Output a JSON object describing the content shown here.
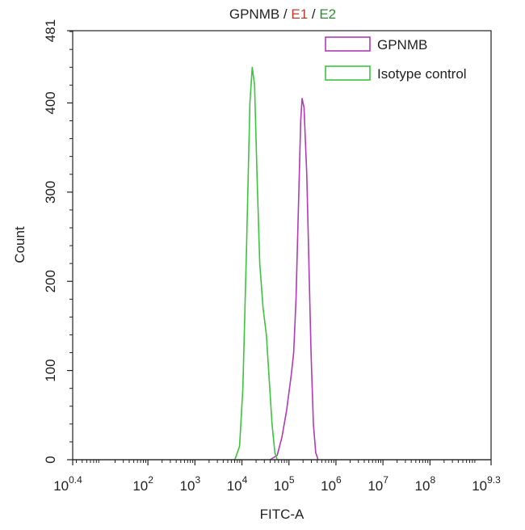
{
  "chart_data": {
    "type": "histogram",
    "title_parts": [
      {
        "text": "GPNMB",
        "color": "#222222"
      },
      {
        "text": " / ",
        "color": "#222222"
      },
      {
        "text": "E1",
        "color": "#c0392b"
      },
      {
        "text": " / ",
        "color": "#222222"
      },
      {
        "text": "E2",
        "color": "#2e8b2e"
      }
    ],
    "xlabel": "FITC-A",
    "ylabel": "Count",
    "x_scale": "log",
    "xlim": [
      0.4,
      9.3
    ],
    "ylim": [
      0,
      481
    ],
    "x_ticks": [
      {
        "value": 0.4,
        "base": "10",
        "exp": "0.4"
      },
      {
        "value": 2,
        "base": "10",
        "exp": "2"
      },
      {
        "value": 3,
        "base": "10",
        "exp": "3"
      },
      {
        "value": 4,
        "base": "10",
        "exp": "4"
      },
      {
        "value": 5,
        "base": "10",
        "exp": "5"
      },
      {
        "value": 6,
        "base": "10",
        "exp": "6"
      },
      {
        "value": 7,
        "base": "10",
        "exp": "7"
      },
      {
        "value": 8,
        "base": "10",
        "exp": "8"
      },
      {
        "value": 9.3,
        "base": "10",
        "exp": "9.3"
      }
    ],
    "y_ticks": [
      0,
      100,
      200,
      300,
      400,
      481
    ],
    "legend_position": "top-right",
    "series": [
      {
        "name": "GPNMB",
        "color": "#b03ab8",
        "points": [
          [
            4.6,
            0
          ],
          [
            4.75,
            5
          ],
          [
            4.85,
            25
          ],
          [
            4.95,
            55
          ],
          [
            5.0,
            75
          ],
          [
            5.05,
            95
          ],
          [
            5.1,
            120
          ],
          [
            5.15,
            180
          ],
          [
            5.2,
            280
          ],
          [
            5.25,
            380
          ],
          [
            5.28,
            405
          ],
          [
            5.32,
            395
          ],
          [
            5.38,
            320
          ],
          [
            5.42,
            230
          ],
          [
            5.47,
            120
          ],
          [
            5.52,
            40
          ],
          [
            5.57,
            8
          ],
          [
            5.62,
            0
          ]
        ]
      },
      {
        "name": "Isotype control",
        "color": "#3cc43c",
        "points": [
          [
            3.85,
            0
          ],
          [
            3.95,
            15
          ],
          [
            4.02,
            80
          ],
          [
            4.1,
            240
          ],
          [
            4.17,
            400
          ],
          [
            4.22,
            440
          ],
          [
            4.27,
            420
          ],
          [
            4.32,
            320
          ],
          [
            4.38,
            220
          ],
          [
            4.45,
            170
          ],
          [
            4.52,
            140
          ],
          [
            4.58,
            90
          ],
          [
            4.64,
            40
          ],
          [
            4.7,
            8
          ],
          [
            4.75,
            0
          ]
        ]
      }
    ]
  }
}
